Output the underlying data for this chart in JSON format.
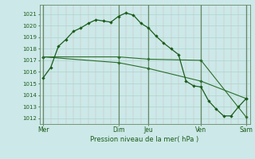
{
  "background_color": "#cce8e8",
  "grid_color_h": "#aad4cc",
  "grid_color_v": "#ccdddd",
  "vline_color_major": "#668866",
  "line_color_main": "#1a5c1a",
  "line_color_ref1": "#2a6e2a",
  "line_color_ref2": "#2a6e2a",
  "ylabel_text": "Pression niveau de la mer( hPa )",
  "x_tick_labels": [
    "Mer",
    "Dim",
    "Jeu",
    "Ven",
    "Sam"
  ],
  "x_tick_positions": [
    0,
    10,
    14,
    21,
    27
  ],
  "ylim": [
    1011.5,
    1021.8
  ],
  "yticks": [
    1012,
    1013,
    1014,
    1015,
    1016,
    1017,
    1018,
    1019,
    1020,
    1021
  ],
  "num_vcols": 28,
  "main_line_x": [
    0,
    1,
    2,
    3,
    4,
    5,
    6,
    7,
    8,
    9,
    10,
    11,
    12,
    13,
    14,
    15,
    16,
    17,
    18,
    19,
    20,
    21,
    22,
    23,
    24,
    25,
    26,
    27
  ],
  "main_line_y": [
    1015.5,
    1016.4,
    1018.2,
    1018.8,
    1019.5,
    1019.8,
    1020.2,
    1020.5,
    1020.4,
    1020.3,
    1020.8,
    1021.1,
    1020.9,
    1020.2,
    1019.8,
    1019.1,
    1018.5,
    1018.0,
    1017.5,
    1015.2,
    1014.8,
    1014.7,
    1013.5,
    1012.8,
    1012.2,
    1012.2,
    1013.0,
    1013.7
  ],
  "ref_line1_x": [
    0,
    10,
    14,
    21,
    27
  ],
  "ref_line1_y": [
    1017.3,
    1017.3,
    1017.1,
    1017.0,
    1012.1
  ],
  "ref_line2_x": [
    0,
    10,
    14,
    21,
    27
  ],
  "ref_line2_y": [
    1017.3,
    1016.8,
    1016.3,
    1015.2,
    1013.7
  ],
  "major_vlines": [
    0,
    10,
    14,
    21,
    27
  ],
  "marker": "D",
  "marker_size": 2.2,
  "lw_main": 0.9,
  "lw_ref": 0.8,
  "figsize": [
    3.2,
    2.0
  ],
  "dpi": 100
}
